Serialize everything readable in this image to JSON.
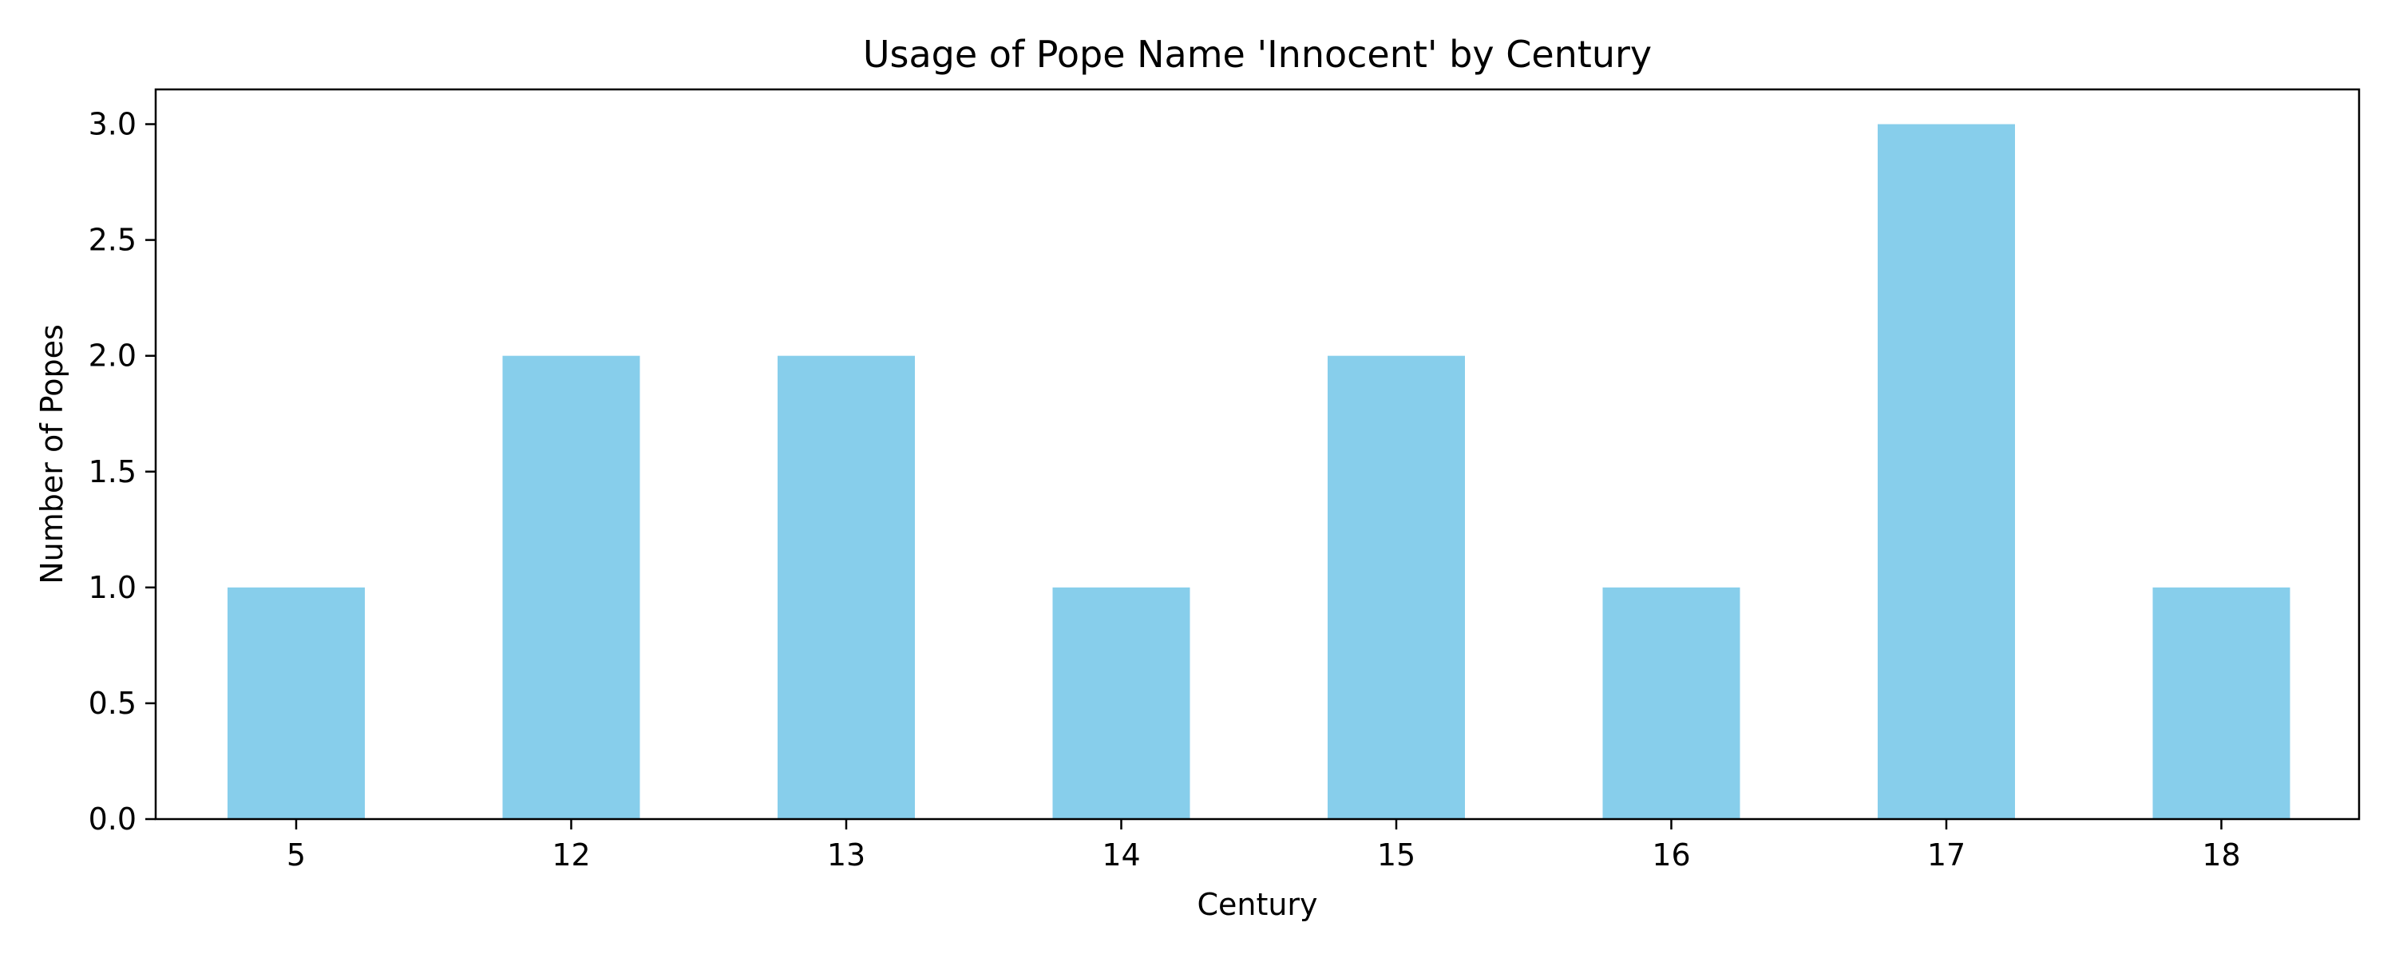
{
  "chart_data": {
    "type": "bar",
    "title": "Usage of Pope Name 'Innocent' by Century",
    "xlabel": "Century",
    "ylabel": "Number of Popes",
    "categories": [
      "5",
      "12",
      "13",
      "14",
      "15",
      "16",
      "17",
      "18"
    ],
    "values": [
      1,
      2,
      2,
      1,
      2,
      1,
      3,
      1
    ],
    "ylim": [
      0,
      3.15
    ],
    "yticks": [
      "0.0",
      "0.5",
      "1.0",
      "1.5",
      "2.0",
      "2.5",
      "3.0"
    ],
    "ytick_values": [
      0,
      0.5,
      1.0,
      1.5,
      2.0,
      2.5,
      3.0
    ],
    "bar_color": "#87CEEB",
    "grid": false,
    "legend": "none"
  }
}
